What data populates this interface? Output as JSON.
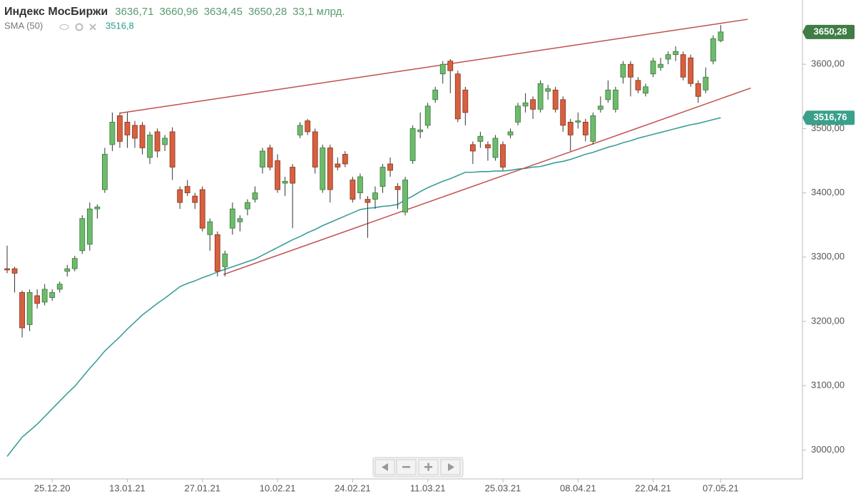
{
  "chart_data": {
    "type": "candlestick",
    "title": "Индекс МосБиржи",
    "legend_values": [
      "3636,71",
      "3660,96",
      "3634,45",
      "3650,28"
    ],
    "volume_label": "33,1 млрд.",
    "price_badge_label": "3650,28",
    "categories": [
      null,
      null,
      null,
      null,
      null,
      null,
      "25.12.20",
      null,
      null,
      null,
      null,
      null,
      null,
      null,
      null,
      null,
      "13.01.21",
      null,
      null,
      null,
      null,
      null,
      null,
      null,
      null,
      null,
      "27.01.21",
      null,
      null,
      null,
      null,
      null,
      null,
      null,
      null,
      null,
      "10.02.21",
      null,
      null,
      null,
      null,
      null,
      null,
      null,
      null,
      null,
      "24.02.21",
      null,
      null,
      null,
      null,
      null,
      null,
      null,
      null,
      null,
      "11.03.21",
      null,
      null,
      null,
      null,
      null,
      null,
      null,
      null,
      null,
      "25.03.21",
      null,
      null,
      null,
      null,
      null,
      null,
      null,
      null,
      null,
      "08.04.21",
      null,
      null,
      null,
      null,
      null,
      null,
      null,
      null,
      null,
      "22.04.21",
      null,
      null,
      null,
      null,
      null,
      null,
      null,
      null,
      "07.05.21"
    ],
    "open": [
      3282,
      3282,
      3245,
      3195,
      3240,
      3230,
      3237,
      3250,
      3278,
      3282,
      3310,
      3320,
      3375,
      3405,
      3475,
      3520,
      3510,
      3505,
      3505,
      3455,
      3495,
      3475,
      3495,
      3405,
      3410,
      3395,
      3405,
      3335,
      3335,
      3285,
      3345,
      3355,
      3375,
      3390,
      3440,
      3470,
      3450,
      3415,
      3440,
      3490,
      3512,
      3495,
      3405,
      3470,
      3445,
      3460,
      3420,
      3400,
      3390,
      3390,
      3410,
      3445,
      3410,
      3370,
      3450,
      3495,
      3505,
      3545,
      3585,
      3605,
      3585,
      3560,
      3475,
      3480,
      3475,
      3455,
      3475,
      3490,
      3510,
      3535,
      3545,
      3530,
      3558,
      3560,
      3545,
      3510,
      3510,
      3510,
      3480,
      3530,
      3545,
      3530,
      3580,
      3600,
      3575,
      3555,
      3585,
      3595,
      3608,
      3615,
      3615,
      3610,
      3570,
      3560,
      3605,
      3636.71
    ],
    "high": [
      3318,
      3285,
      3248,
      3250,
      3250,
      3258,
      3250,
      3262,
      3288,
      3302,
      3365,
      3385,
      3382,
      3470,
      3525,
      3525,
      3525,
      3512,
      3510,
      3495,
      3500,
      3490,
      3502,
      3410,
      3420,
      3400,
      3410,
      3360,
      3340,
      3310,
      3385,
      3365,
      3390,
      3410,
      3470,
      3475,
      3460,
      3425,
      3445,
      3510,
      3515,
      3500,
      3475,
      3475,
      3455,
      3465,
      3425,
      3430,
      3395,
      3410,
      3445,
      3455,
      3415,
      3425,
      3505,
      3525,
      3540,
      3565,
      3605,
      3608,
      3590,
      3565,
      3480,
      3495,
      3480,
      3490,
      3480,
      3500,
      3540,
      3555,
      3550,
      3575,
      3568,
      3565,
      3550,
      3515,
      3525,
      3515,
      3525,
      3550,
      3575,
      3565,
      3605,
      3605,
      3580,
      3570,
      3610,
      3610,
      3620,
      3628,
      3620,
      3615,
      3575,
      3595,
      3645,
      3660.96
    ],
    "low": [
      3275,
      3245,
      3175,
      3185,
      3220,
      3225,
      3232,
      3245,
      3270,
      3278,
      3305,
      3310,
      3360,
      3400,
      3465,
      3470,
      3470,
      3470,
      3460,
      3445,
      3455,
      3465,
      3420,
      3375,
      3395,
      3375,
      3340,
      3310,
      3270,
      3270,
      3335,
      3340,
      3365,
      3385,
      3430,
      3435,
      3400,
      3395,
      3345,
      3485,
      3490,
      3430,
      3400,
      3385,
      3435,
      3440,
      3385,
      3390,
      3330,
      3375,
      3400,
      3425,
      3375,
      3365,
      3445,
      3485,
      3500,
      3540,
      3570,
      3555,
      3510,
      3505,
      3445,
      3470,
      3450,
      3450,
      3435,
      3485,
      3505,
      3525,
      3515,
      3525,
      3545,
      3525,
      3495,
      3465,
      3500,
      3480,
      3475,
      3525,
      3540,
      3525,
      3570,
      3550,
      3555,
      3550,
      3580,
      3590,
      3600,
      3605,
      3575,
      3565,
      3540,
      3555,
      3600,
      3634.45
    ],
    "close": [
      3280,
      3275,
      3190,
      3245,
      3228,
      3250,
      3245,
      3258,
      3282,
      3298,
      3360,
      3375,
      3378,
      3460,
      3510,
      3480,
      3490,
      3485,
      3470,
      3490,
      3465,
      3485,
      3440,
      3385,
      3400,
      3385,
      3345,
      3355,
      3278,
      3305,
      3375,
      3360,
      3385,
      3400,
      3465,
      3440,
      3405,
      3418,
      3415,
      3505,
      3495,
      3440,
      3470,
      3405,
      3440,
      3445,
      3390,
      3425,
      3385,
      3400,
      3440,
      3435,
      3405,
      3420,
      3500,
      3498,
      3535,
      3560,
      3600,
      3590,
      3515,
      3525,
      3465,
      3488,
      3470,
      3485,
      3440,
      3495,
      3535,
      3540,
      3530,
      3570,
      3562,
      3530,
      3505,
      3490,
      3512,
      3490,
      3520,
      3535,
      3560,
      3560,
      3600,
      3580,
      3560,
      3565,
      3605,
      3600,
      3615,
      3620,
      3580,
      3570,
      3550,
      3580,
      3640,
      3650.28
    ],
    "up_color": "#6dbb6d",
    "down_color": "#d6603f",
    "sma": {
      "name": "SMA (50)",
      "color": "#3a9e98",
      "value_label": "3516,8",
      "badge_label": "3516,76",
      "values": [
        2990,
        3005,
        3020,
        3030,
        3040,
        3052,
        3064,
        3076,
        3088,
        3099,
        3113,
        3127,
        3140,
        3154,
        3165,
        3176,
        3188,
        3199,
        3210,
        3219,
        3228,
        3236,
        3245,
        3254,
        3259,
        3263,
        3268,
        3272,
        3277,
        3281,
        3285,
        3289,
        3293,
        3297,
        3303,
        3309,
        3315,
        3321,
        3327,
        3332,
        3338,
        3343,
        3349,
        3354,
        3359,
        3364,
        3369,
        3374,
        3376,
        3377,
        3379,
        3380,
        3382,
        3389,
        3395,
        3402,
        3408,
        3413,
        3418,
        3422,
        3427,
        3432,
        3432,
        3433,
        3433,
        3434,
        3434,
        3435,
        3437,
        3438,
        3440,
        3441,
        3444,
        3447,
        3449,
        3452,
        3456,
        3460,
        3463,
        3467,
        3471,
        3474,
        3478,
        3481,
        3485,
        3488,
        3491,
        3494,
        3497,
        3500,
        3503,
        3506,
        3508,
        3511,
        3514,
        3516.76
      ]
    },
    "trendlines": [
      {
        "color": "#c0504d",
        "x": [
          15,
          98.6
        ],
        "y": [
          3524,
          3670
        ]
      },
      {
        "color": "#c0504d",
        "x": [
          28.8,
          99
        ],
        "y": [
          3273,
          3563
        ]
      }
    ],
    "ylim": [
      2955,
      3700
    ],
    "yticks": [
      {
        "value": 3000,
        "label": "3000,00"
      },
      {
        "value": 3100,
        "label": "3100,00"
      },
      {
        "value": 3200,
        "label": "3200,00"
      },
      {
        "value": 3300,
        "label": "3300,00"
      },
      {
        "value": 3400,
        "label": "3400,00"
      },
      {
        "value": 3500,
        "label": "3500,00"
      },
      {
        "value": 3600,
        "label": "3600,00"
      }
    ]
  }
}
